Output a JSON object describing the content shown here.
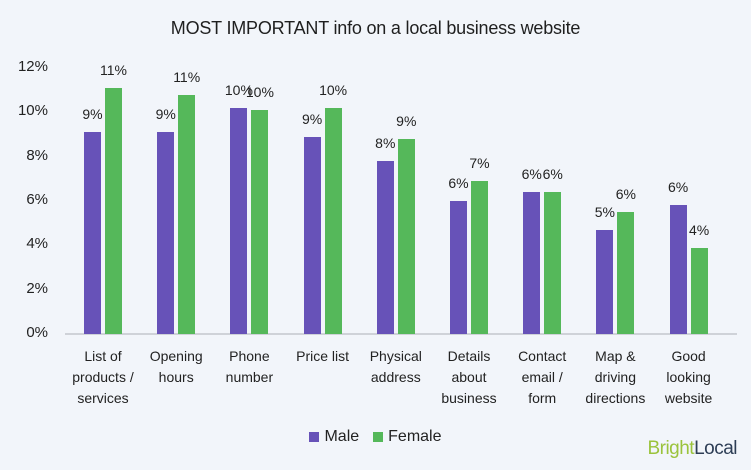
{
  "chart_data": {
    "type": "bar",
    "title": "MOST IMPORTANT info on a local business website",
    "xlabel": "",
    "ylabel": "",
    "ylim": [
      0,
      12
    ],
    "yticks": [
      "0%",
      "2%",
      "4%",
      "6%",
      "8%",
      "10%",
      "12%"
    ],
    "grid": false,
    "legend_position": "bottom",
    "categories": [
      "List of products / services",
      "Opening hours",
      "Phone number",
      "Price list",
      "Physical address",
      "Details about business",
      "Contact email / form",
      "Map & driving directions",
      "Good looking website"
    ],
    "category_lines": [
      [
        "List of",
        "products /",
        "services"
      ],
      [
        "Opening",
        "hours"
      ],
      [
        "Phone",
        "number"
      ],
      [
        "Price list"
      ],
      [
        "Physical",
        "address"
      ],
      [
        "Details",
        "about",
        "business"
      ],
      [
        "Contact",
        "email /",
        "form"
      ],
      [
        "Map &",
        "driving",
        "directions"
      ],
      [
        "Good",
        "looking",
        "website"
      ]
    ],
    "series": [
      {
        "name": "Male",
        "color": "#6752b8",
        "values": [
          9.1,
          9.1,
          10.2,
          8.9,
          7.8,
          6.0,
          6.4,
          4.7,
          5.8
        ],
        "labels": [
          "9%",
          "9%",
          "10%",
          "9%",
          "8%",
          "6%",
          "6%",
          "5%",
          "6%"
        ]
      },
      {
        "name": "Female",
        "color": "#55b85a",
        "values": [
          11.1,
          10.8,
          10.1,
          10.2,
          8.8,
          6.9,
          6.4,
          5.5,
          3.9
        ],
        "labels": [
          "11%",
          "11%",
          "10%",
          "10%",
          "9%",
          "7%",
          "6%",
          "6%",
          "4%"
        ]
      }
    ]
  },
  "legend": {
    "male": "Male",
    "female": "Female"
  },
  "logo": {
    "part1": "Bright",
    "part2": "Local"
  }
}
